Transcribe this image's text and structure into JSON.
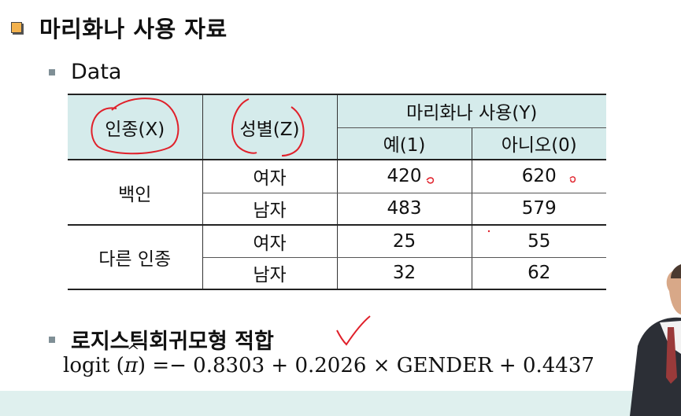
{
  "title": "마리화나 사용 자료",
  "bullets": {
    "data": "Data",
    "fit": "로지스틱회귀모형 적합"
  },
  "table": {
    "col_race": "인종(X)",
    "col_gender": "성별(Z)",
    "col_use": "마리화나 사용(Y)",
    "col_yes": "예(1)",
    "col_no": "아니오(0)",
    "rows": [
      {
        "race": "백인",
        "gender": "여자",
        "yes": "420",
        "no": "620"
      },
      {
        "race": "",
        "gender": "남자",
        "yes": "483",
        "no": "579"
      },
      {
        "race": "다른 인종",
        "gender": "여자",
        "yes": "25",
        "no": "55"
      },
      {
        "race": "",
        "gender": "남자",
        "yes": "32",
        "no": "62"
      }
    ]
  },
  "formula": {
    "prefix": "logit",
    "pi": "π",
    "hat": "^",
    "rest": "=− 0.8303 + 0.2026 × GENDER + 0.4437"
  },
  "colors": {
    "header_bg": "#d5ebeb",
    "ink_red": "#e0202a",
    "band": "#dff0ee"
  }
}
